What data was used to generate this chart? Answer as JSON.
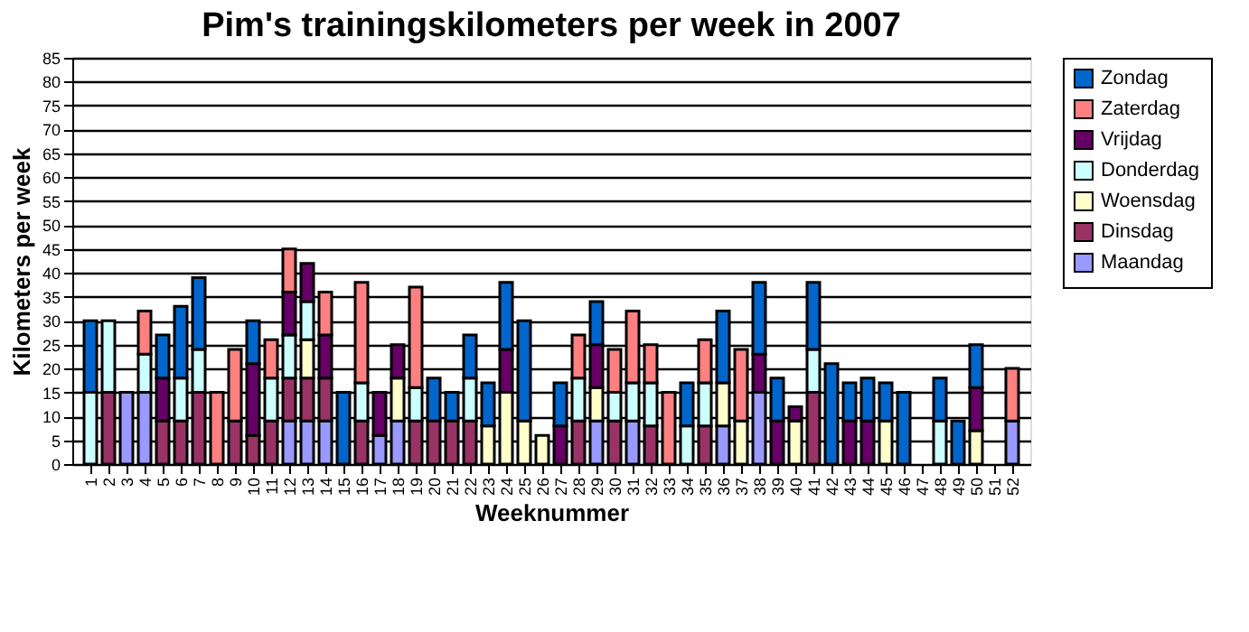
{
  "chart_data": {
    "type": "bar",
    "stacked": true,
    "title": "Pim's  trainingskilometers per week in 2007",
    "xlabel": "Weeknummer",
    "ylabel": "Kilometers per week",
    "categories": [
      "1",
      "2",
      "3",
      "4",
      "5",
      "6",
      "7",
      "8",
      "9",
      "10",
      "11",
      "12",
      "13",
      "14",
      "15",
      "16",
      "17",
      "18",
      "19",
      "20",
      "21",
      "22",
      "23",
      "24",
      "25",
      "26",
      "27",
      "28",
      "29",
      "30",
      "31",
      "32",
      "33",
      "34",
      "35",
      "36",
      "37",
      "38",
      "39",
      "40",
      "41",
      "42",
      "43",
      "44",
      "45",
      "46",
      "47",
      "48",
      "49",
      "50",
      "51",
      "52"
    ],
    "ylim": [
      0,
      85
    ],
    "yticks": [
      0,
      5,
      10,
      15,
      20,
      25,
      30,
      35,
      40,
      45,
      50,
      55,
      60,
      65,
      70,
      75,
      80,
      85
    ],
    "grid": "y",
    "legend": "right",
    "series": [
      {
        "name": "Maandag",
        "color": "#9999ff",
        "values": [
          null,
          null,
          15,
          15,
          null,
          null,
          null,
          null,
          null,
          null,
          null,
          9,
          9,
          9,
          null,
          null,
          6,
          9,
          null,
          null,
          null,
          null,
          null,
          null,
          null,
          null,
          null,
          null,
          9,
          null,
          9,
          null,
          null,
          null,
          null,
          8,
          null,
          15,
          null,
          null,
          null,
          null,
          null,
          null,
          null,
          null,
          null,
          null,
          null,
          null,
          null,
          9
        ]
      },
      {
        "name": "Dinsdag",
        "color": "#993366",
        "values": [
          null,
          15,
          null,
          null,
          9,
          9,
          15,
          null,
          9,
          6,
          9,
          9,
          9,
          9,
          null,
          9,
          null,
          null,
          9,
          9,
          9,
          9,
          null,
          null,
          null,
          null,
          null,
          9,
          null,
          9,
          null,
          8,
          null,
          null,
          8,
          null,
          null,
          null,
          null,
          null,
          15,
          null,
          null,
          null,
          null,
          null,
          null,
          null,
          null,
          null,
          null,
          null
        ]
      },
      {
        "name": "Woensdag",
        "color": "#ffffcc",
        "values": [
          null,
          null,
          null,
          null,
          null,
          null,
          null,
          null,
          null,
          null,
          null,
          null,
          8,
          null,
          null,
          null,
          null,
          9,
          null,
          null,
          null,
          null,
          8,
          15,
          9,
          6,
          null,
          null,
          7,
          null,
          null,
          null,
          null,
          null,
          null,
          9,
          9,
          null,
          null,
          9,
          null,
          null,
          null,
          null,
          9,
          null,
          null,
          null,
          null,
          7,
          null,
          null
        ]
      },
      {
        "name": "Donderdag",
        "color": "#ccffff",
        "values": [
          15,
          15,
          null,
          8,
          null,
          9,
          9,
          null,
          null,
          null,
          9,
          9,
          8,
          null,
          null,
          8,
          null,
          null,
          7,
          null,
          null,
          9,
          null,
          null,
          null,
          null,
          null,
          9,
          null,
          6,
          8,
          9,
          null,
          8,
          9,
          null,
          null,
          null,
          null,
          null,
          9,
          null,
          null,
          null,
          null,
          null,
          null,
          9,
          null,
          null,
          null,
          null
        ]
      },
      {
        "name": "Vrijdag",
        "color": "#660066",
        "values": [
          null,
          null,
          null,
          null,
          9,
          null,
          null,
          null,
          null,
          15,
          null,
          9,
          8,
          9,
          null,
          null,
          9,
          7,
          null,
          null,
          null,
          null,
          null,
          9,
          null,
          null,
          8,
          null,
          9,
          null,
          null,
          null,
          null,
          null,
          null,
          null,
          null,
          8,
          9,
          3,
          null,
          null,
          9,
          9,
          null,
          null,
          null,
          null,
          null,
          9,
          null,
          null
        ]
      },
      {
        "name": "Zaterdag",
        "color": "#ff8080",
        "values": [
          null,
          null,
          null,
          9,
          null,
          null,
          null,
          15,
          15,
          null,
          8,
          9,
          null,
          9,
          null,
          21,
          null,
          null,
          21,
          null,
          null,
          null,
          null,
          null,
          null,
          null,
          null,
          9,
          null,
          9,
          15,
          8,
          15,
          null,
          9,
          null,
          15,
          null,
          null,
          null,
          null,
          null,
          null,
          null,
          null,
          null,
          null,
          null,
          null,
          null,
          null,
          11
        ]
      },
      {
        "name": "Zondag",
        "color": "#0066cc",
        "values": [
          15,
          null,
          null,
          null,
          9,
          15,
          15,
          null,
          null,
          9,
          null,
          null,
          null,
          null,
          15,
          null,
          null,
          null,
          null,
          9,
          6,
          9,
          9,
          14,
          21,
          null,
          9,
          null,
          9,
          null,
          null,
          null,
          null,
          9,
          null,
          15,
          null,
          15,
          9,
          null,
          14,
          21,
          8,
          9,
          8,
          15,
          null,
          9,
          9,
          9,
          null,
          null
        ]
      }
    ]
  }
}
